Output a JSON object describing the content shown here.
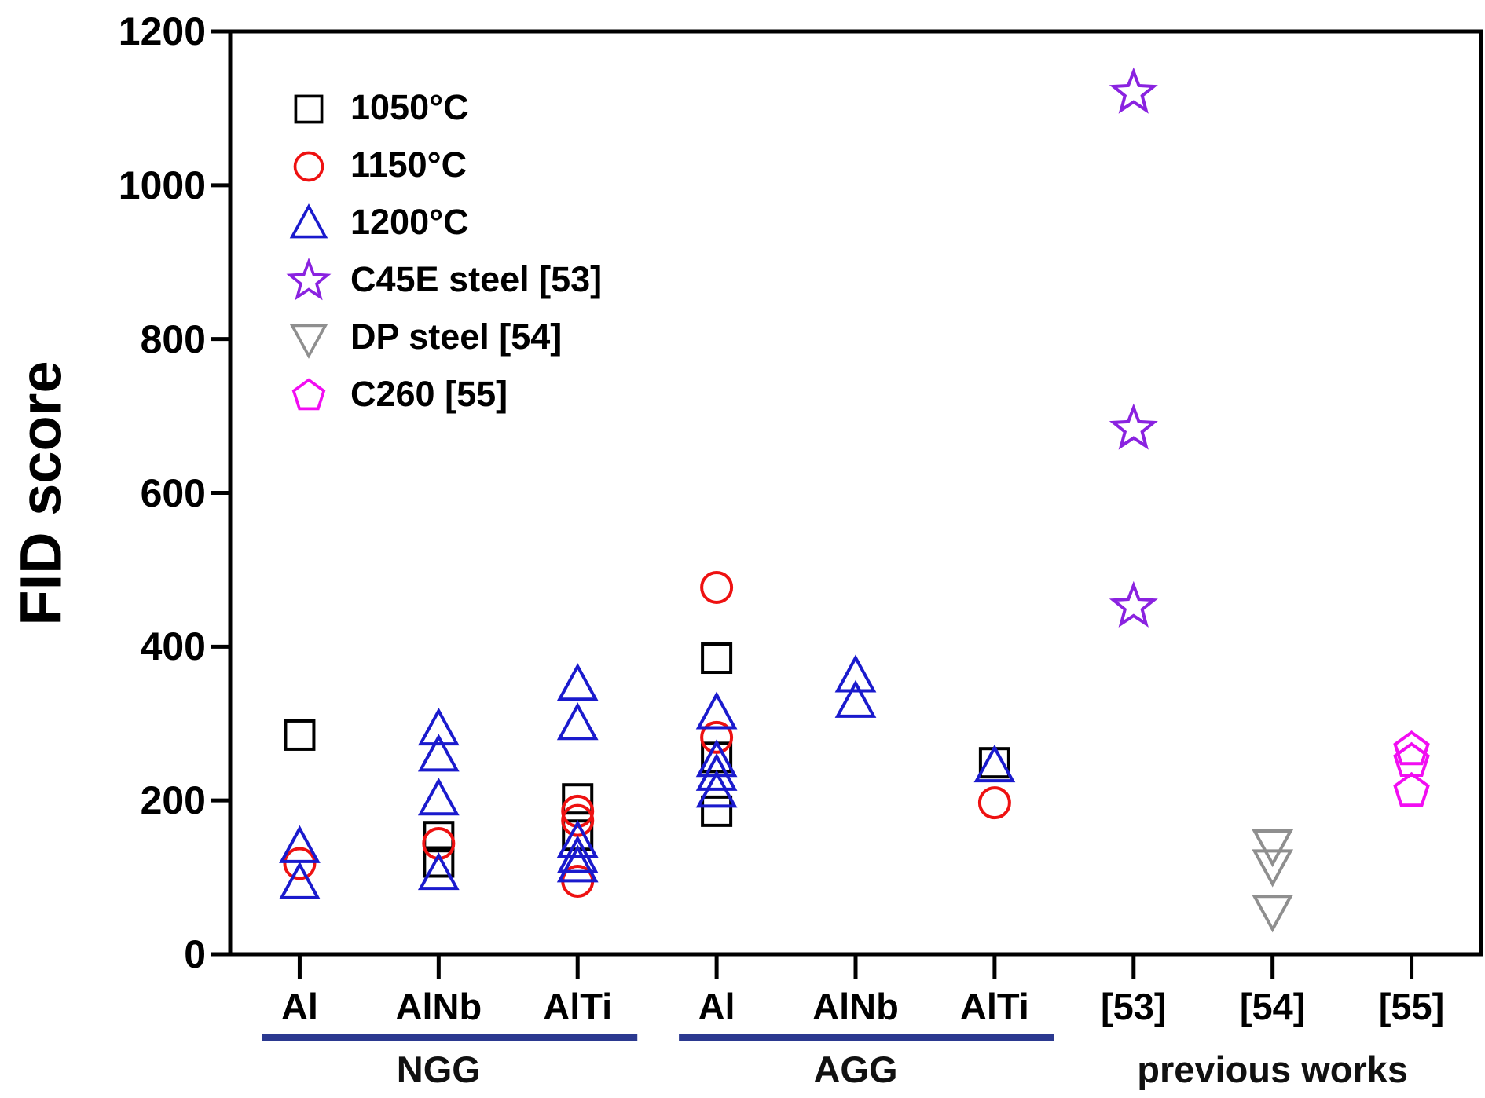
{
  "chart_data": {
    "type": "scatter",
    "title": "",
    "ylabel": "FID score",
    "xlabel": "",
    "ylim": [
      0,
      1200
    ],
    "ytick_values": [
      0,
      200,
      400,
      600,
      800,
      1000,
      1200
    ],
    "ytick_labels": [
      "0",
      "200",
      "400",
      "600",
      "800",
      "1000",
      "1200"
    ],
    "categories": [
      "Al",
      "AlNb",
      "AlTi",
      "Al",
      "AlNb",
      "AlTi",
      "[53]",
      "[54]",
      "[55]"
    ],
    "groups": [
      {
        "label": "NGG",
        "start": 0,
        "end": 2,
        "underline": true
      },
      {
        "label": "AGG",
        "start": 3,
        "end": 5,
        "underline": true
      },
      {
        "label": "previous works",
        "start": 6,
        "end": 8,
        "underline": false
      }
    ],
    "grid": false,
    "legend_position": "top-left",
    "axis_color": "#000000",
    "group_underline_color": "#2b3990",
    "series": [
      {
        "name": "1050°C",
        "marker": "square",
        "color": "#000000",
        "points": [
          [
            0,
            285
          ],
          [
            1,
            153
          ],
          [
            1,
            120
          ],
          [
            2,
            202
          ],
          [
            2,
            155
          ],
          [
            3,
            385
          ],
          [
            3,
            256
          ],
          [
            3,
            186
          ],
          [
            5,
            249
          ]
        ]
      },
      {
        "name": "1150°C",
        "marker": "circle",
        "color": "#ee1111",
        "points": [
          [
            0,
            118
          ],
          [
            1,
            144
          ],
          [
            2,
            186
          ],
          [
            2,
            174
          ],
          [
            2,
            95
          ],
          [
            3,
            477
          ],
          [
            3,
            282
          ],
          [
            5,
            197
          ]
        ]
      },
      {
        "name": "1200°C",
        "marker": "triangle-up",
        "color": "#1a1acd",
        "points": [
          [
            0,
            139
          ],
          [
            0,
            92
          ],
          [
            1,
            292
          ],
          [
            1,
            258
          ],
          [
            1,
            201
          ],
          [
            1,
            104
          ],
          [
            2,
            350
          ],
          [
            2,
            299
          ],
          [
            2,
            146
          ],
          [
            2,
            126
          ],
          [
            2,
            114
          ],
          [
            3,
            313
          ],
          [
            3,
            251
          ],
          [
            3,
            233
          ],
          [
            3,
            211
          ],
          [
            4,
            361
          ],
          [
            4,
            328
          ],
          [
            5,
            244
          ]
        ]
      },
      {
        "name": "C45E steel [53]",
        "marker": "star",
        "color": "#8a22e0",
        "points": [
          [
            6,
            1120
          ],
          [
            6,
            683
          ],
          [
            6,
            452
          ]
        ]
      },
      {
        "name": "DP steel [54]",
        "marker": "triangle-down",
        "color": "#8f8f8f",
        "points": [
          [
            7,
            142
          ],
          [
            7,
            116
          ],
          [
            7,
            57
          ]
        ]
      },
      {
        "name": "C260 [55]",
        "marker": "pentagon",
        "color": "#f20df2",
        "points": [
          [
            8,
            266
          ],
          [
            8,
            251
          ],
          [
            8,
            212
          ]
        ]
      }
    ]
  }
}
